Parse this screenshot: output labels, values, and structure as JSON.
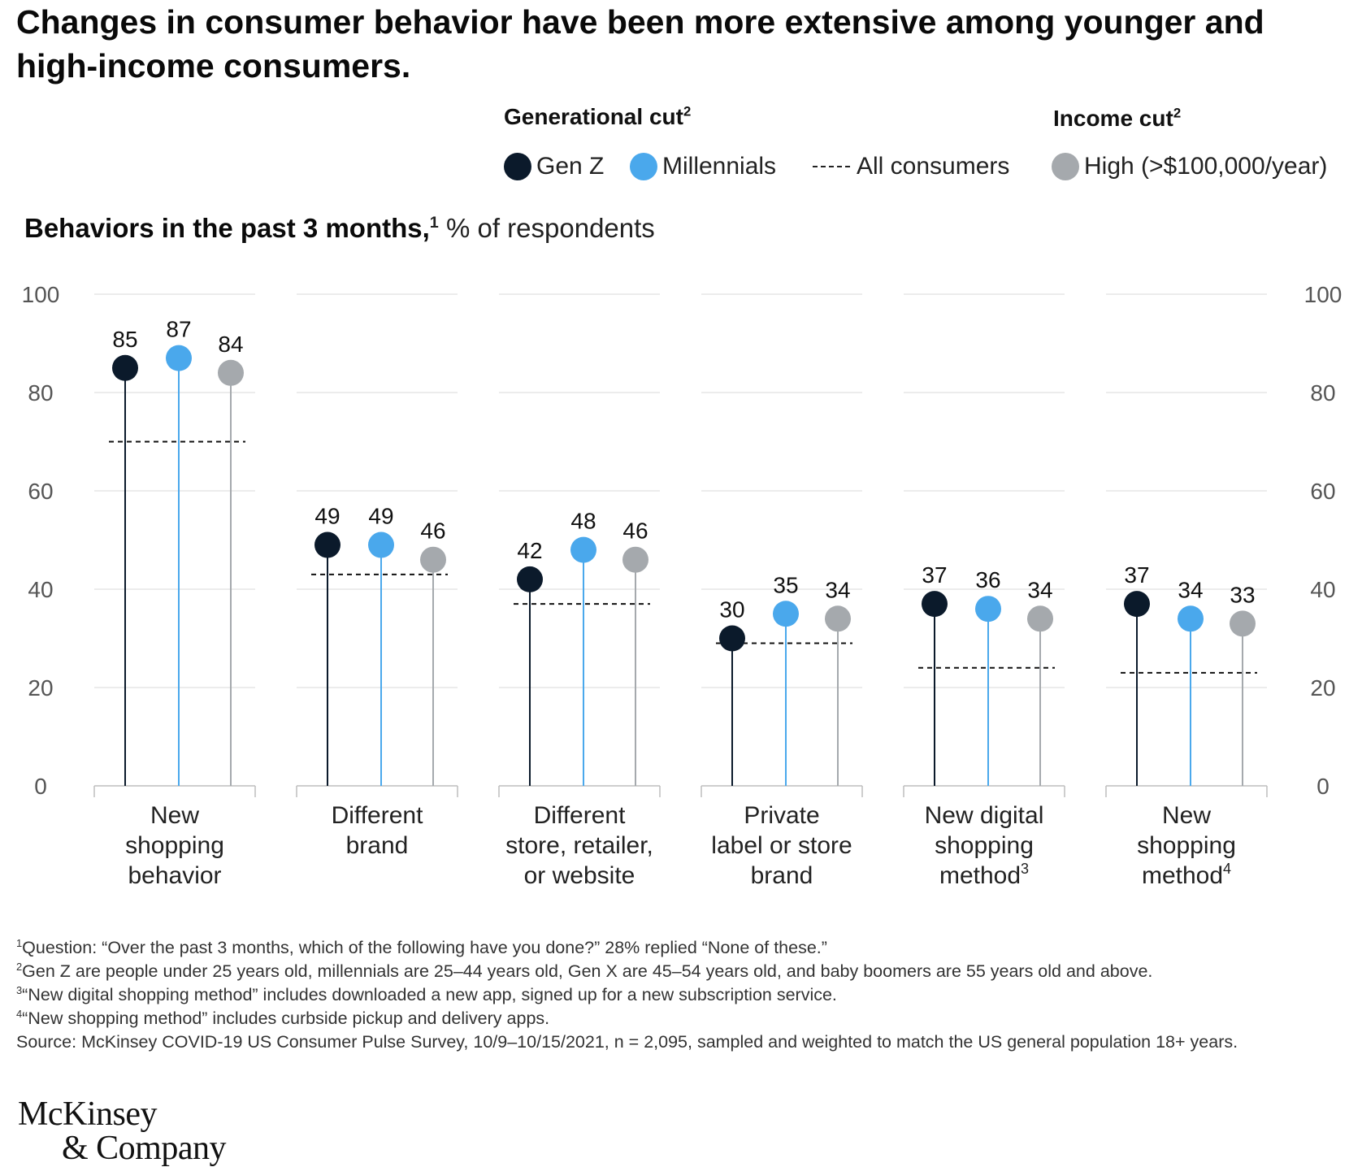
{
  "title": "Changes in consumer behavior have been more extensive among younger and high-income consumers.",
  "legend": {
    "generational_head": "Generational cut",
    "generational_sup": "2",
    "income_head": "Income cut",
    "income_sup": "2",
    "items": [
      {
        "label": "Gen Z",
        "color": "#0b1a2b"
      },
      {
        "label": "Millennials",
        "color": "#4aa8ec"
      },
      {
        "label": "All consumers",
        "style": "dashed"
      },
      {
        "label": "High (>$100,000/year)",
        "color": "#a5a9ad"
      }
    ]
  },
  "subtitle": {
    "bold": "Behaviors in the past 3 months,",
    "sup": "1",
    "rest": " % of respondents"
  },
  "chart_data": {
    "type": "lollipop",
    "ylim": [
      0,
      100
    ],
    "yticks": [
      "0",
      "20",
      "40",
      "60",
      "80",
      "100"
    ],
    "grid": true,
    "legend_position": "top",
    "series": [
      {
        "name": "Gen Z",
        "color": "#0b1a2b"
      },
      {
        "name": "Millennials",
        "color": "#4aa8ec"
      },
      {
        "name": "High (>$100,000/year)",
        "color": "#a5a9ad"
      }
    ],
    "reference_series": "All consumers",
    "categories": [
      {
        "label_lines": [
          "New",
          "shopping",
          "behavior"
        ],
        "sup": "",
        "values": [
          85,
          87,
          84
        ],
        "all_consumers": 70
      },
      {
        "label_lines": [
          "Different",
          "brand"
        ],
        "sup": "",
        "values": [
          49,
          49,
          46
        ],
        "all_consumers": 43
      },
      {
        "label_lines": [
          "Different",
          "store, retailer,",
          "or website"
        ],
        "sup": "",
        "values": [
          42,
          48,
          46
        ],
        "all_consumers": 37
      },
      {
        "label_lines": [
          "Private",
          "label or store",
          "brand"
        ],
        "sup": "",
        "values": [
          30,
          35,
          34
        ],
        "all_consumers": 29
      },
      {
        "label_lines": [
          "New digital",
          "shopping",
          "method"
        ],
        "sup": "3",
        "values": [
          37,
          36,
          34
        ],
        "all_consumers": 24
      },
      {
        "label_lines": [
          "New",
          "shopping",
          "method"
        ],
        "sup": "4",
        "values": [
          37,
          34,
          33
        ],
        "all_consumers": 23
      }
    ]
  },
  "footnotes": [
    {
      "sup": "1",
      "text": "Question: “Over the past 3 months, which of the following have you done?” 28% replied “None of these.”"
    },
    {
      "sup": "2",
      "text": "Gen Z are people under 25 years old, millennials are 25–44 years old, Gen X are 45–54 years old, and baby boomers are 55 years old and above."
    },
    {
      "sup": "3",
      "text": "“New digital shopping method” includes downloaded a new app, signed up for a new subscription service."
    },
    {
      "sup": "4",
      "text": "“New shopping method” includes curbside pickup and delivery apps."
    },
    {
      "sup": "",
      "text": " Source: McKinsey COVID-19 US Consumer Pulse Survey, 10/9–10/15/2021, n = 2,095, sampled and weighted to match the US general population 18+ years."
    }
  ],
  "logo": {
    "line1": "McKinsey",
    "line2": "& Company"
  }
}
